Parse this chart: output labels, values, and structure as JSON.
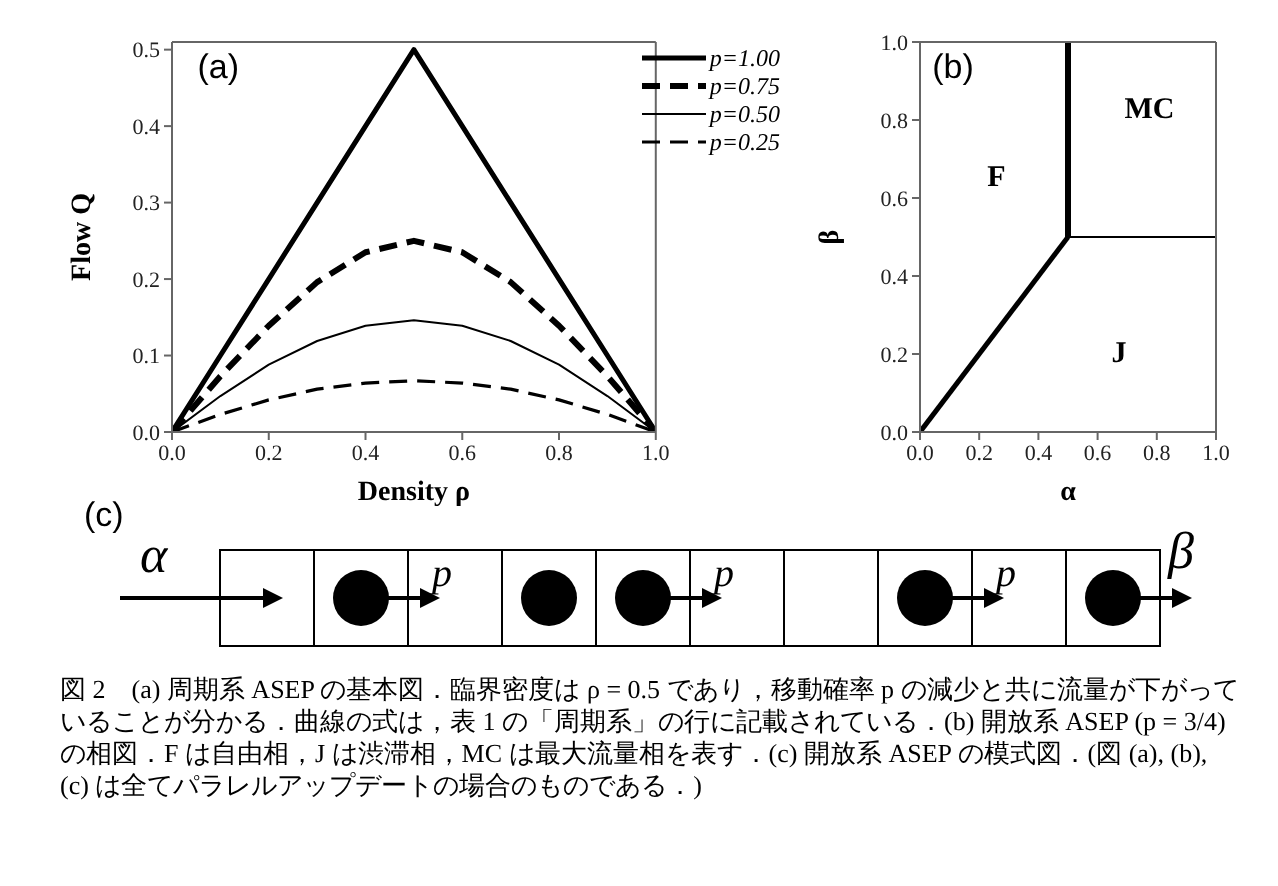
{
  "chart_data": [
    {
      "type": "line",
      "xlabel": "Density ρ",
      "ylabel": "Flow Q",
      "annotations": [
        "(a)"
      ],
      "legend": "top right",
      "x": [
        0,
        0.1,
        0.2,
        0.3,
        0.4,
        0.5,
        0.6,
        0.7,
        0.8,
        0.9,
        1
      ],
      "series": [
        {
          "name": "p=1.00",
          "color": "#000000",
          "line_style": "solid",
          "values": [
            0,
            0.1,
            0.2,
            0.3,
            0.4,
            0.5,
            0.4,
            0.3,
            0.2,
            0.1,
            0
          ]
        },
        {
          "name": "p=0.75",
          "color": "#000000",
          "line_style": "dashed",
          "values": [
            0,
            0.073,
            0.139,
            0.196,
            0.235,
            0.25,
            0.235,
            0.196,
            0.139,
            0.073,
            0
          ]
        },
        {
          "name": "p=0.50",
          "color": "#000000",
          "line_style": "solid",
          "values": [
            0,
            0.047,
            0.088,
            0.119,
            0.139,
            0.146,
            0.139,
            0.119,
            0.088,
            0.047,
            0
          ]
        },
        {
          "name": "p=0.25",
          "color": "#000000",
          "line_style": "dashed",
          "values": [
            0,
            0.023,
            0.042,
            0.056,
            0.064,
            0.067,
            0.064,
            0.056,
            0.042,
            0.023,
            0
          ]
        }
      ],
      "xlim": [
        0,
        1
      ],
      "ylim": [
        0,
        0.51
      ],
      "xticks": [
        {
          "value": 0,
          "label": "0.0"
        },
        {
          "value": 0.2,
          "label": "0.2"
        },
        {
          "value": 0.4,
          "label": "0.4"
        },
        {
          "value": 0.6,
          "label": "0.6"
        },
        {
          "value": 0.8,
          "label": "0.8"
        },
        {
          "value": 1,
          "label": "1.0"
        }
      ],
      "yticks": [
        {
          "value": 0,
          "label": "0.0"
        },
        {
          "value": 0.1,
          "label": "0.1"
        },
        {
          "value": 0.2,
          "label": "0.2"
        },
        {
          "value": 0.3,
          "label": "0.3"
        },
        {
          "value": 0.4,
          "label": "0.4"
        },
        {
          "value": 0.5,
          "label": "0.5"
        }
      ]
    },
    {
      "type": "line",
      "xlabel": "α",
      "ylabel": "β",
      "legend": false,
      "annotations": [
        "(b)",
        "F",
        "MC",
        "J"
      ],
      "series": [
        {
          "color": "#000000",
          "x": [
            0,
            0.5
          ],
          "values": [
            0,
            0.5
          ]
        },
        {
          "color": "#000000",
          "x": [
            0.5,
            0.5
          ],
          "values": [
            0.5,
            1
          ]
        },
        {
          "color": "#000000",
          "x": [
            0.5,
            1
          ],
          "values": [
            0.5,
            0.5
          ]
        }
      ],
      "xlim": [
        0,
        1
      ],
      "ylim": [
        0,
        1
      ],
      "xticks": [
        {
          "value": 0,
          "label": "0.0"
        },
        {
          "value": 0.2,
          "label": "0.2"
        },
        {
          "value": 0.4,
          "label": "0.4"
        },
        {
          "value": 0.6,
          "label": "0.6"
        },
        {
          "value": 0.8,
          "label": "0.8"
        },
        {
          "value": 1,
          "label": "1.0"
        }
      ],
      "yticks": [
        {
          "value": 0,
          "label": "0.0"
        },
        {
          "value": 0.2,
          "label": "0.2"
        },
        {
          "value": 0.4,
          "label": "0.4"
        },
        {
          "value": 0.6,
          "label": "0.6"
        },
        {
          "value": 0.8,
          "label": "0.8"
        },
        {
          "value": 1,
          "label": "1.0"
        }
      ]
    },
    {
      "type": "other",
      "annotations": [
        "(c)",
        "α",
        "p",
        "p",
        "p",
        "β",
        "図 2　(a) 周期系 ASEP の基本図．臨界密度は ρ = 0.5 であり，移動確率 p の減少と共に流量が下がっていることが分かる．曲線の式は，表 1 の「周期系」の行に記載されている．(b) 開放系 ASEP (p = 3/4) の相図．F は自由相，J は渋滞相，MC は最大流量相を表す．(c) 開放系 ASEP の模式図．(図 (a), (b), (c) は全てパラレルアップデートの場合のものである．)"
      ]
    }
  ]
}
